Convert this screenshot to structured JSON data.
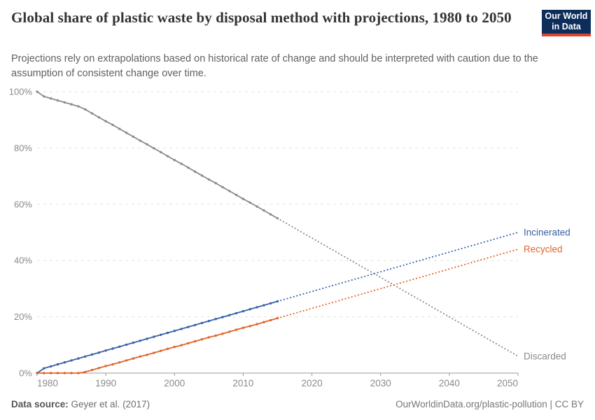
{
  "header": {
    "title": "Global share of plastic waste by disposal method with projections, 1980 to 2050",
    "subtitle": "Projections rely on extrapolations based on historical rate of change and should be interpreted with caution due to the assumption of consistent change over time.",
    "logo": {
      "line1": "Our World",
      "line2": "in Data",
      "bg_color": "#0d2e5a",
      "accent_color": "#e0432b"
    }
  },
  "footer": {
    "source_label": "Data source:",
    "source_value": " Geyer et al. (2017)",
    "right_text": "OurWorldinData.org/plastic-pollution | CC BY"
  },
  "chart_data": {
    "type": "line",
    "title": "Global share of plastic waste by disposal method with projections, 1980 to 2050",
    "xlabel": "",
    "ylabel": "",
    "xlim": [
      1980,
      2050
    ],
    "ylim": [
      0,
      100
    ],
    "grid": "horizontal dashed",
    "legend_position": "line-end-labels",
    "projection_style": "dotted after 2015",
    "xticks": [
      1980,
      1990,
      2000,
      2010,
      2020,
      2030,
      2040,
      2050
    ],
    "yticks": [
      {
        "value": 0,
        "label": "0%"
      },
      {
        "value": 20,
        "label": "20%"
      },
      {
        "value": 40,
        "label": "40%"
      },
      {
        "value": 60,
        "label": "60%"
      },
      {
        "value": 80,
        "label": "80%"
      },
      {
        "value": 100,
        "label": "100%"
      }
    ],
    "years_historical": [
      1980,
      1981,
      1982,
      1983,
      1984,
      1985,
      1986,
      1987,
      1988,
      1989,
      1990,
      1991,
      1992,
      1993,
      1994,
      1995,
      1996,
      1997,
      1998,
      1999,
      2000,
      2001,
      2002,
      2003,
      2004,
      2005,
      2006,
      2007,
      2008,
      2009,
      2010,
      2011,
      2012,
      2013,
      2014,
      2015
    ],
    "series": [
      {
        "name": "Discarded",
        "color": "#8b8b8b",
        "historical_values": [
          100,
          98.3,
          97.6,
          96.9,
          96.2,
          95.5,
          94.8,
          93.7,
          92.3,
          90.9,
          89.5,
          88.2,
          86.8,
          85.4,
          84.0,
          82.6,
          81.3,
          79.9,
          78.5,
          77.1,
          75.7,
          74.4,
          73.0,
          71.6,
          70.2,
          68.8,
          67.5,
          66.1,
          64.7,
          63.3,
          61.9,
          60.6,
          59.2,
          57.8,
          56.4,
          55.0
        ],
        "projection_years": [
          2015,
          2050
        ],
        "projection_values": [
          55.0,
          6.0
        ]
      },
      {
        "name": "Incinerated",
        "color": "#3a62a8",
        "historical_values": [
          0,
          1.7,
          2.4,
          3.1,
          3.8,
          4.5,
          5.2,
          5.9,
          6.6,
          7.3,
          8.0,
          8.7,
          9.4,
          10.1,
          10.8,
          11.5,
          12.2,
          12.9,
          13.6,
          14.3,
          15.0,
          15.7,
          16.4,
          17.1,
          17.8,
          18.5,
          19.2,
          19.9,
          20.6,
          21.3,
          22.0,
          22.7,
          23.4,
          24.1,
          24.8,
          25.5
        ],
        "projection_years": [
          2015,
          2050
        ],
        "projection_values": [
          25.5,
          50.0
        ]
      },
      {
        "name": "Recycled",
        "color": "#e0642c",
        "historical_values": [
          0,
          0,
          0,
          0,
          0,
          0,
          0,
          0.4,
          1.1,
          1.8,
          2.5,
          3.1,
          3.8,
          4.5,
          5.2,
          5.9,
          6.5,
          7.2,
          7.9,
          8.6,
          9.3,
          9.9,
          10.6,
          11.3,
          12.0,
          12.7,
          13.3,
          14.0,
          14.7,
          15.4,
          16.1,
          16.7,
          17.4,
          18.1,
          18.8,
          19.5
        ],
        "projection_years": [
          2015,
          2050
        ],
        "projection_values": [
          19.5,
          44.0
        ]
      }
    ]
  }
}
